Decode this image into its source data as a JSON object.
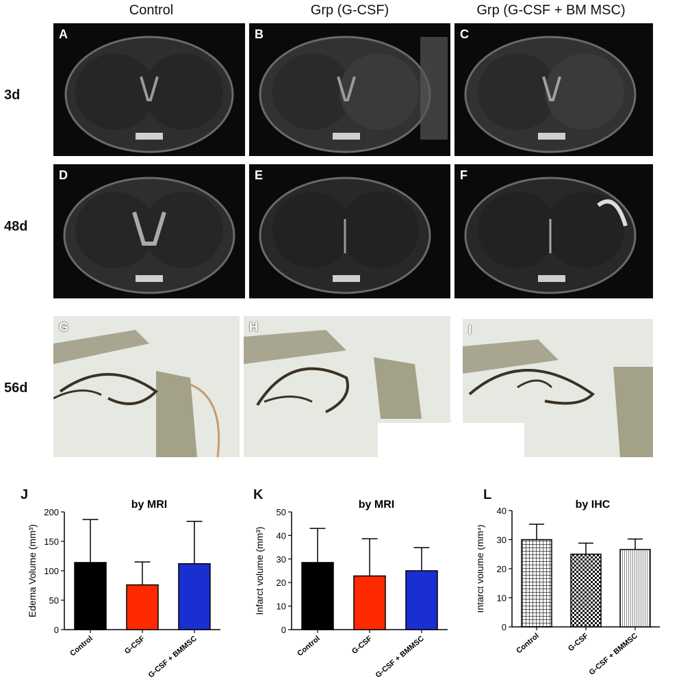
{
  "columns": [
    "Control",
    "Grp (G-CSF)",
    "Grp (G-CSF + BM MSC)"
  ],
  "rows": [
    "3d",
    "48d",
    "56d"
  ],
  "panels": {
    "A": "A",
    "B": "B",
    "C": "C",
    "D": "D",
    "E": "E",
    "F": "F",
    "G": "G",
    "H": "H",
    "I": "I"
  },
  "chart_data": [
    {
      "type": "bar",
      "panel": "J",
      "title": "by MRI",
      "ylabel": "Edema Volume (mm³)",
      "categories": [
        "Control",
        "G-CSF",
        "G-CSF + BMMSC"
      ],
      "values": [
        114,
        76,
        112
      ],
      "errors": [
        73,
        39,
        72
      ],
      "ylim": [
        0,
        200
      ],
      "yticks": [
        0,
        50,
        100,
        150,
        200
      ],
      "colors": [
        "#000000",
        "#ff2a00",
        "#1a2fd0"
      ],
      "fills": [
        "solid",
        "solid",
        "solid"
      ]
    },
    {
      "type": "bar",
      "panel": "K",
      "title": "by MRI",
      "ylabel": "Infarct volume (mm³)",
      "categories": [
        "Control",
        "G-CSF",
        "G-CSF + BMMSC"
      ],
      "values": [
        28.5,
        22.8,
        25
      ],
      "errors": [
        14.5,
        15.8,
        9.8
      ],
      "ylim": [
        0,
        50
      ],
      "yticks": [
        0,
        10,
        20,
        30,
        40,
        50
      ],
      "colors": [
        "#000000",
        "#ff2a00",
        "#1a2fd0"
      ],
      "fills": [
        "solid",
        "solid",
        "solid"
      ]
    },
    {
      "type": "bar",
      "panel": "L",
      "title": "by IHC",
      "ylabel": "Infarct volume (mm³)",
      "categories": [
        "Control",
        "G-CSF",
        "G-CSF + BMMSC"
      ],
      "values": [
        30,
        25,
        26.6
      ],
      "errors": [
        5.3,
        3.8,
        3.6
      ],
      "ylim": [
        0,
        40
      ],
      "yticks": [
        0,
        10,
        20,
        30,
        40
      ],
      "colors": [
        "#000000",
        "#000000",
        "#000000"
      ],
      "fills": [
        "grid",
        "checker",
        "lines"
      ]
    }
  ]
}
